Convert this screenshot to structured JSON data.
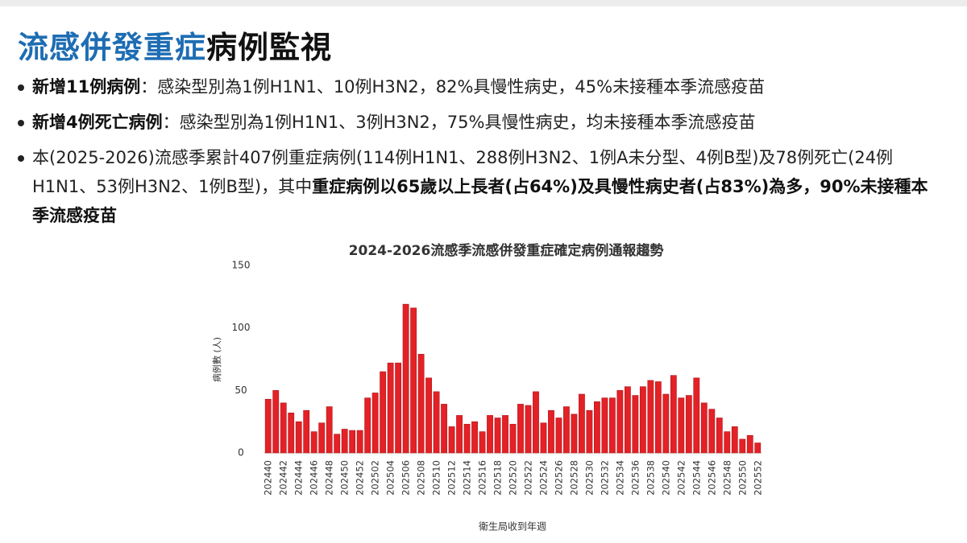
{
  "header": {
    "title": [
      {
        "text": "流感併發重症",
        "color": "#1e6db3"
      },
      {
        "text": "病例監視",
        "color": "#111111"
      }
    ]
  },
  "bullets": [
    {
      "segments": [
        {
          "text": "新增11例病例",
          "bold": true
        },
        {
          "text": "：感染型別為1例H1N1、10例H3N2，82%具慢性病史，45%未接種本季流感疫苗",
          "bold": false
        }
      ]
    },
    {
      "segments": [
        {
          "text": "新增4例死亡病例",
          "bold": true
        },
        {
          "text": "：感染型別為1例H1N1、3例H3N2，75%具慢性病史，均未接種本季流感疫苗",
          "bold": false
        }
      ]
    },
    {
      "segments": [
        {
          "text": "本(2025-2026)流感季累計407例重症病例(114例H1N1、288例H3N2、1例A未分型、4例B型)及78例死亡(24例H1N1、53例H3N2、1例B型)，其中",
          "bold": false
        },
        {
          "text": "重症病例以65歲以上長者(占64%)及具慢性病史者(占83%)為多，90%未接種本季流感疫苗",
          "bold": true
        }
      ]
    }
  ],
  "chart_data": {
    "type": "bar",
    "title": "2024-2026流感季流感併發重症確定病例通報趨勢",
    "x_label": "衛生局收到年週",
    "y_label": "病例數 (人)",
    "color": "#e32126",
    "grid": false,
    "ylim": [
      0,
      150
    ],
    "yticks": [
      0,
      50,
      100,
      150
    ],
    "categories": [
      "202440",
      null,
      "202442",
      null,
      "202444",
      null,
      "202446",
      null,
      "202448",
      null,
      "202450",
      null,
      "202452",
      null,
      "202502",
      null,
      "202504",
      null,
      "202506",
      null,
      "202508",
      null,
      "202510",
      null,
      "202512",
      null,
      "202514",
      null,
      "202516",
      null,
      "202518",
      null,
      "202520",
      null,
      "202522",
      null,
      "202524",
      null,
      "202526",
      null,
      "202528",
      null,
      "202530",
      null,
      "202532",
      null,
      "202534",
      null,
      "202536",
      null,
      "202538",
      null,
      "202540",
      null,
      "202542",
      null,
      "202544",
      null,
      "202546",
      null,
      "202548",
      null,
      "202550",
      null,
      "202552"
    ],
    "values": [
      43,
      50,
      40,
      32,
      25,
      34,
      17,
      24,
      37,
      15,
      19,
      18,
      18,
      44,
      48,
      65,
      72,
      72,
      119,
      116,
      79,
      60,
      49,
      39,
      21,
      30,
      23,
      25,
      17,
      30,
      28,
      30,
      23,
      39,
      38,
      49,
      24,
      34,
      28,
      37,
      31,
      47,
      34,
      41,
      44,
      44,
      50,
      53,
      46,
      53,
      58,
      57,
      47,
      62,
      44,
      46,
      60,
      40,
      35,
      28,
      17,
      21,
      11,
      14,
      8
    ]
  }
}
